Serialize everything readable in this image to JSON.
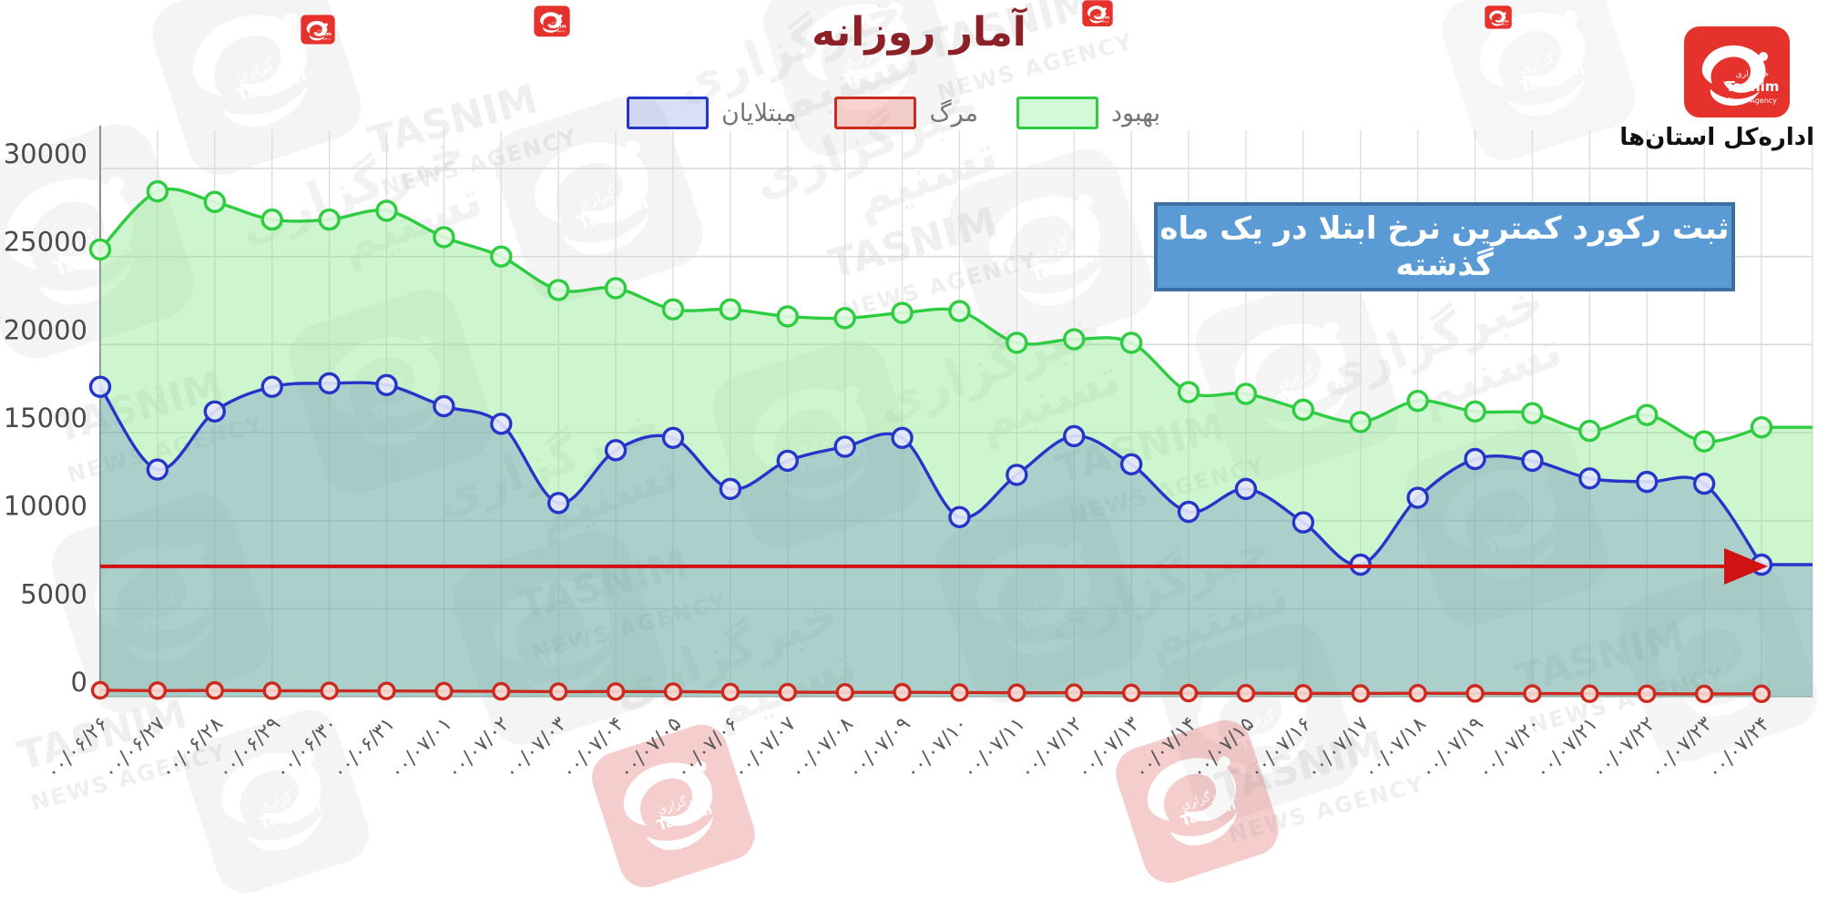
{
  "header": {
    "title": "آمار روزانه"
  },
  "legend": {
    "items": [
      {
        "label": "مبتلایان",
        "color": "#2635c9",
        "fill": "rgba(120,135,235,0.28)"
      },
      {
        "label": "مرگ",
        "color": "#cc2a1f",
        "fill": "rgba(240,130,120,0.35)"
      },
      {
        "label": "بهبود",
        "color": "#2ecc40",
        "fill": "rgba(130,240,140,0.35)"
      }
    ]
  },
  "logo": {
    "line1": "خبرگزاری",
    "line2": "Tasnim",
    "line3": "News Agency",
    "brand_color": "#e5322d"
  },
  "org_label": "اداره‌کل استان‌ها",
  "annotation": {
    "text": "ثبت رکورد کمترین نرخ ابتلا در یک ماه گذشته",
    "bg": "#5b9bd5",
    "border": "#3e6fa3"
  },
  "watermark": {
    "en1": "TASNIM",
    "en2": "NEWS AGENCY",
    "fa1": "خبرگزاری",
    "fa2": "تسنیم"
  },
  "chart_data": {
    "type": "area",
    "title": "آمار روزانه",
    "xlabel": "",
    "ylabel": "",
    "ylim": [
      0,
      30000
    ],
    "ytick_step": 5000,
    "yticks": [
      0,
      5000,
      10000,
      15000,
      20000,
      25000,
      30000
    ],
    "grid": true,
    "legend_position": "top",
    "categories": [
      "۰۰/۰۶/۲۶",
      "۰۰/۰۶/۲۷",
      "۰۰/۰۶/۲۸",
      "۰۰/۰۶/۲۹",
      "۰۰/۰۶/۳۰",
      "۰۰/۰۶/۳۱",
      "۰۰/۰۷/۰۱",
      "۰۰/۰۷/۰۲",
      "۰۰/۰۷/۰۳",
      "۰۰/۰۷/۰۴",
      "۰۰/۰۷/۰۵",
      "۰۰/۰۷/۰۶",
      "۰۰/۰۷/۰۷",
      "۰۰/۰۷/۰۸",
      "۰۰/۰۷/۰۹",
      "۰۰/۰۷/۱۰",
      "۰۰/۰۷/۱۱",
      "۰۰/۰۷/۱۲",
      "۰۰/۰۷/۱۳",
      "۰۰/۰۷/۱۴",
      "۰۰/۰۷/۱۵",
      "۰۰/۰۷/۱۶",
      "۰۰/۰۷/۱۷",
      "۰۰/۰۷/۱۸",
      "۰۰/۰۷/۱۹",
      "۰۰/۰۷/۲۰",
      "۰۰/۰۷/۲۱",
      "۰۰/۰۷/۲۲",
      "۰۰/۰۷/۲۳",
      "۰۰/۰۷/۲۴"
    ],
    "series": [
      {
        "name": "بهبود",
        "color": "#2ecc40",
        "dot_fill": "#e2fae2",
        "area": "rgba(125,232,125,0.38)",
        "values": [
          25400,
          28700,
          28100,
          27100,
          27100,
          27600,
          26100,
          25000,
          23100,
          23200,
          22000,
          22000,
          21600,
          21500,
          21800,
          21900,
          20100,
          20300,
          20100,
          17300,
          17200,
          16300,
          15600,
          16800,
          16200,
          16100,
          15100,
          16000,
          14500,
          15300
        ]
      },
      {
        "name": "مبتلایان",
        "color": "#2635c9",
        "dot_fill": "#e4e8fa",
        "area": "rgba(90,120,200,0.30)",
        "values": [
          17600,
          12900,
          16200,
          17600,
          17800,
          17700,
          16500,
          15500,
          11000,
          14000,
          14700,
          11800,
          13400,
          14200,
          14700,
          10200,
          12600,
          14800,
          13200,
          10500,
          11800,
          9900,
          7500,
          11300,
          13500,
          13400,
          12400,
          12200,
          12100,
          7500
        ]
      },
      {
        "name": "مرگ",
        "color": "#cc2a1f",
        "dot_fill": "#fadcd6",
        "area": "none",
        "values": [
          365,
          348,
          355,
          340,
          332,
          329,
          318,
          305,
          289,
          294,
          286,
          268,
          255,
          247,
          252,
          238,
          224,
          229,
          215,
          206,
          199,
          190,
          184,
          196,
          188,
          180,
          172,
          167,
          158,
          163
        ]
      }
    ],
    "reference_arrow": {
      "value": 7400,
      "color": "#d01212",
      "meaning": "کمترین نرخ ابتلا"
    }
  }
}
